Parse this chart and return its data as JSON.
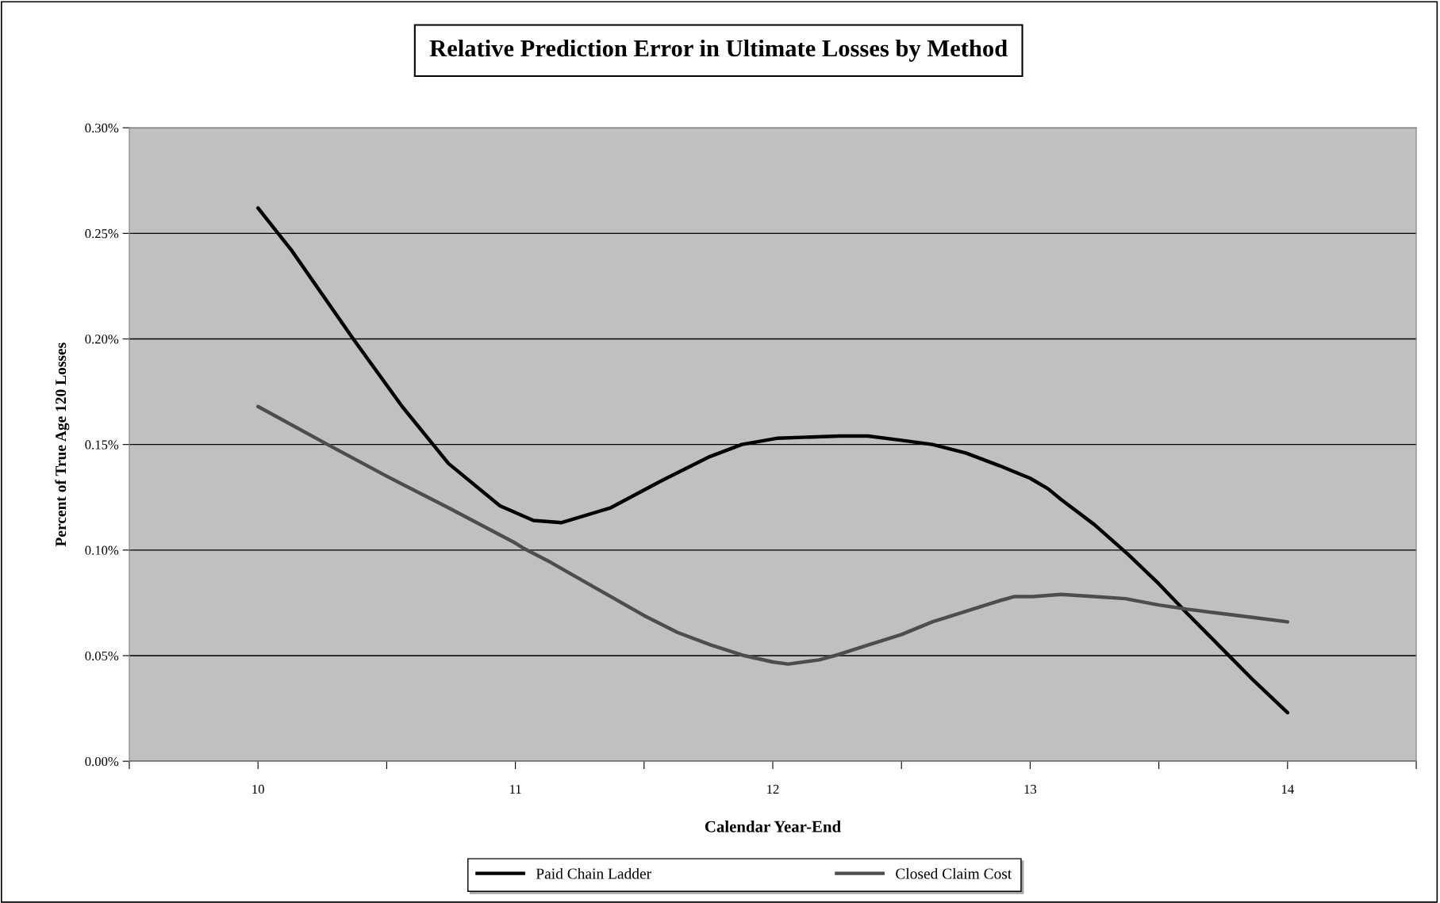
{
  "chart_data": {
    "type": "line",
    "title": "Relative Prediction Error in Ultimate Losses by Method",
    "xlabel": "Calendar Year-End",
    "ylabel": "Percent of True Age 120 Losses",
    "series": [
      {
        "name": "Paid Chain Ladder",
        "color": "#000000",
        "x": [
          10,
          10.13,
          10.37,
          10.56,
          10.74,
          10.94,
          11.07,
          11.18,
          11.37,
          11.57,
          11.75,
          11.88,
          12.02,
          12.26,
          12.37,
          12.5,
          12.62,
          12.75,
          12.88,
          13.0,
          13.07,
          13.12,
          13.25,
          13.38,
          13.5,
          13.61,
          13.74,
          13.87,
          14.0
        ],
        "values": [
          0.262,
          0.242,
          0.2,
          0.168,
          0.141,
          0.121,
          0.114,
          0.113,
          0.12,
          0.133,
          0.144,
          0.15,
          0.153,
          0.154,
          0.154,
          0.152,
          0.15,
          0.146,
          0.14,
          0.134,
          0.129,
          0.124,
          0.112,
          0.098,
          0.084,
          0.07,
          0.054,
          0.038,
          0.023
        ]
      },
      {
        "name": "Closed Claim Cost",
        "color": "#4d4d4d",
        "x": [
          10,
          10.27,
          10.5,
          10.74,
          10.99,
          11.03,
          11.14,
          11.37,
          11.5,
          11.63,
          11.76,
          11.89,
          12.0,
          12.06,
          12.18,
          12.24,
          12.37,
          12.5,
          12.62,
          12.75,
          12.88,
          12.94,
          13.01,
          13.12,
          13.25,
          13.37,
          13.5,
          13.61,
          13.74,
          13.87,
          14.0
        ],
        "values": [
          0.168,
          0.15,
          0.135,
          0.12,
          0.104,
          0.101,
          0.094,
          0.078,
          0.069,
          0.061,
          0.055,
          0.05,
          0.047,
          0.046,
          0.048,
          0.05,
          0.055,
          0.06,
          0.066,
          0.071,
          0.076,
          0.078,
          0.078,
          0.079,
          0.078,
          0.077,
          0.074,
          0.072,
          0.07,
          0.068,
          0.066
        ]
      }
    ],
    "xlim": [
      9.5,
      14.5
    ],
    "xticks": [
      {
        "value": 9.5,
        "label": null
      },
      10,
      {
        "value": 10.5,
        "label": null
      },
      11,
      {
        "value": 11.5,
        "label": null
      },
      12,
      {
        "value": 12.5,
        "label": null
      },
      13,
      {
        "value": 13.5,
        "label": null
      },
      14,
      {
        "value": 14.5,
        "label": null
      }
    ],
    "ylim": [
      0,
      0.3
    ],
    "yticks": [
      {
        "value": 0,
        "label": "0.00%"
      },
      {
        "value": 0.05,
        "label": "0.05%"
      },
      {
        "value": 0.1,
        "label": "0.10%"
      },
      {
        "value": 0.15,
        "label": "0.15%"
      },
      {
        "value": 0.2,
        "label": "0.20%"
      },
      {
        "value": 0.25,
        "label": "0.25%"
      },
      {
        "value": 0.3,
        "label": "0.30%"
      }
    ],
    "grid": "y",
    "legend": "bottom",
    "marker": "none",
    "line_style": "solid"
  }
}
